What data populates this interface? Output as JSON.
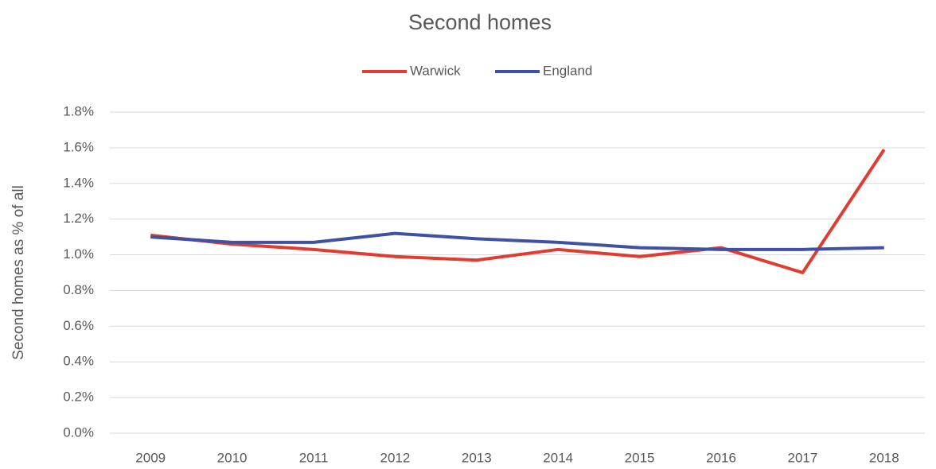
{
  "chart_data": {
    "type": "line",
    "title": "Second homes",
    "y_label": "Second homes as % of all",
    "categories": [
      "2009",
      "2010",
      "2011",
      "2012",
      "2013",
      "2014",
      "2015",
      "2016",
      "2017",
      "2018"
    ],
    "series": [
      {
        "name": "Warwick",
        "color": "#e03c31",
        "values": [
          1.11,
          1.06,
          1.03,
          0.99,
          0.97,
          1.03,
          0.99,
          1.04,
          0.9,
          1.59
        ]
      },
      {
        "name": "England",
        "color": "#3f51a3",
        "values": [
          1.1,
          1.07,
          1.07,
          1.12,
          1.09,
          1.07,
          1.04,
          1.03,
          1.03,
          1.04
        ]
      }
    ],
    "ylim": [
      0,
      1.8
    ],
    "yticks": [
      {
        "value": 0,
        "label": "0.0%"
      },
      {
        "value": 0.2,
        "label": "0.2%"
      },
      {
        "value": 0.4,
        "label": "0.4%"
      },
      {
        "value": 0.6,
        "label": "0.6%"
      },
      {
        "value": 0.8,
        "label": "0.8%"
      },
      {
        "value": 1.0,
        "label": "1.0%"
      },
      {
        "value": 1.2,
        "label": "1.2%"
      },
      {
        "value": 1.4,
        "label": "1.4%"
      },
      {
        "value": 1.6,
        "label": "1.6%"
      },
      {
        "value": 1.8,
        "label": "1.8%"
      }
    ],
    "grid": true,
    "legend": "top"
  }
}
